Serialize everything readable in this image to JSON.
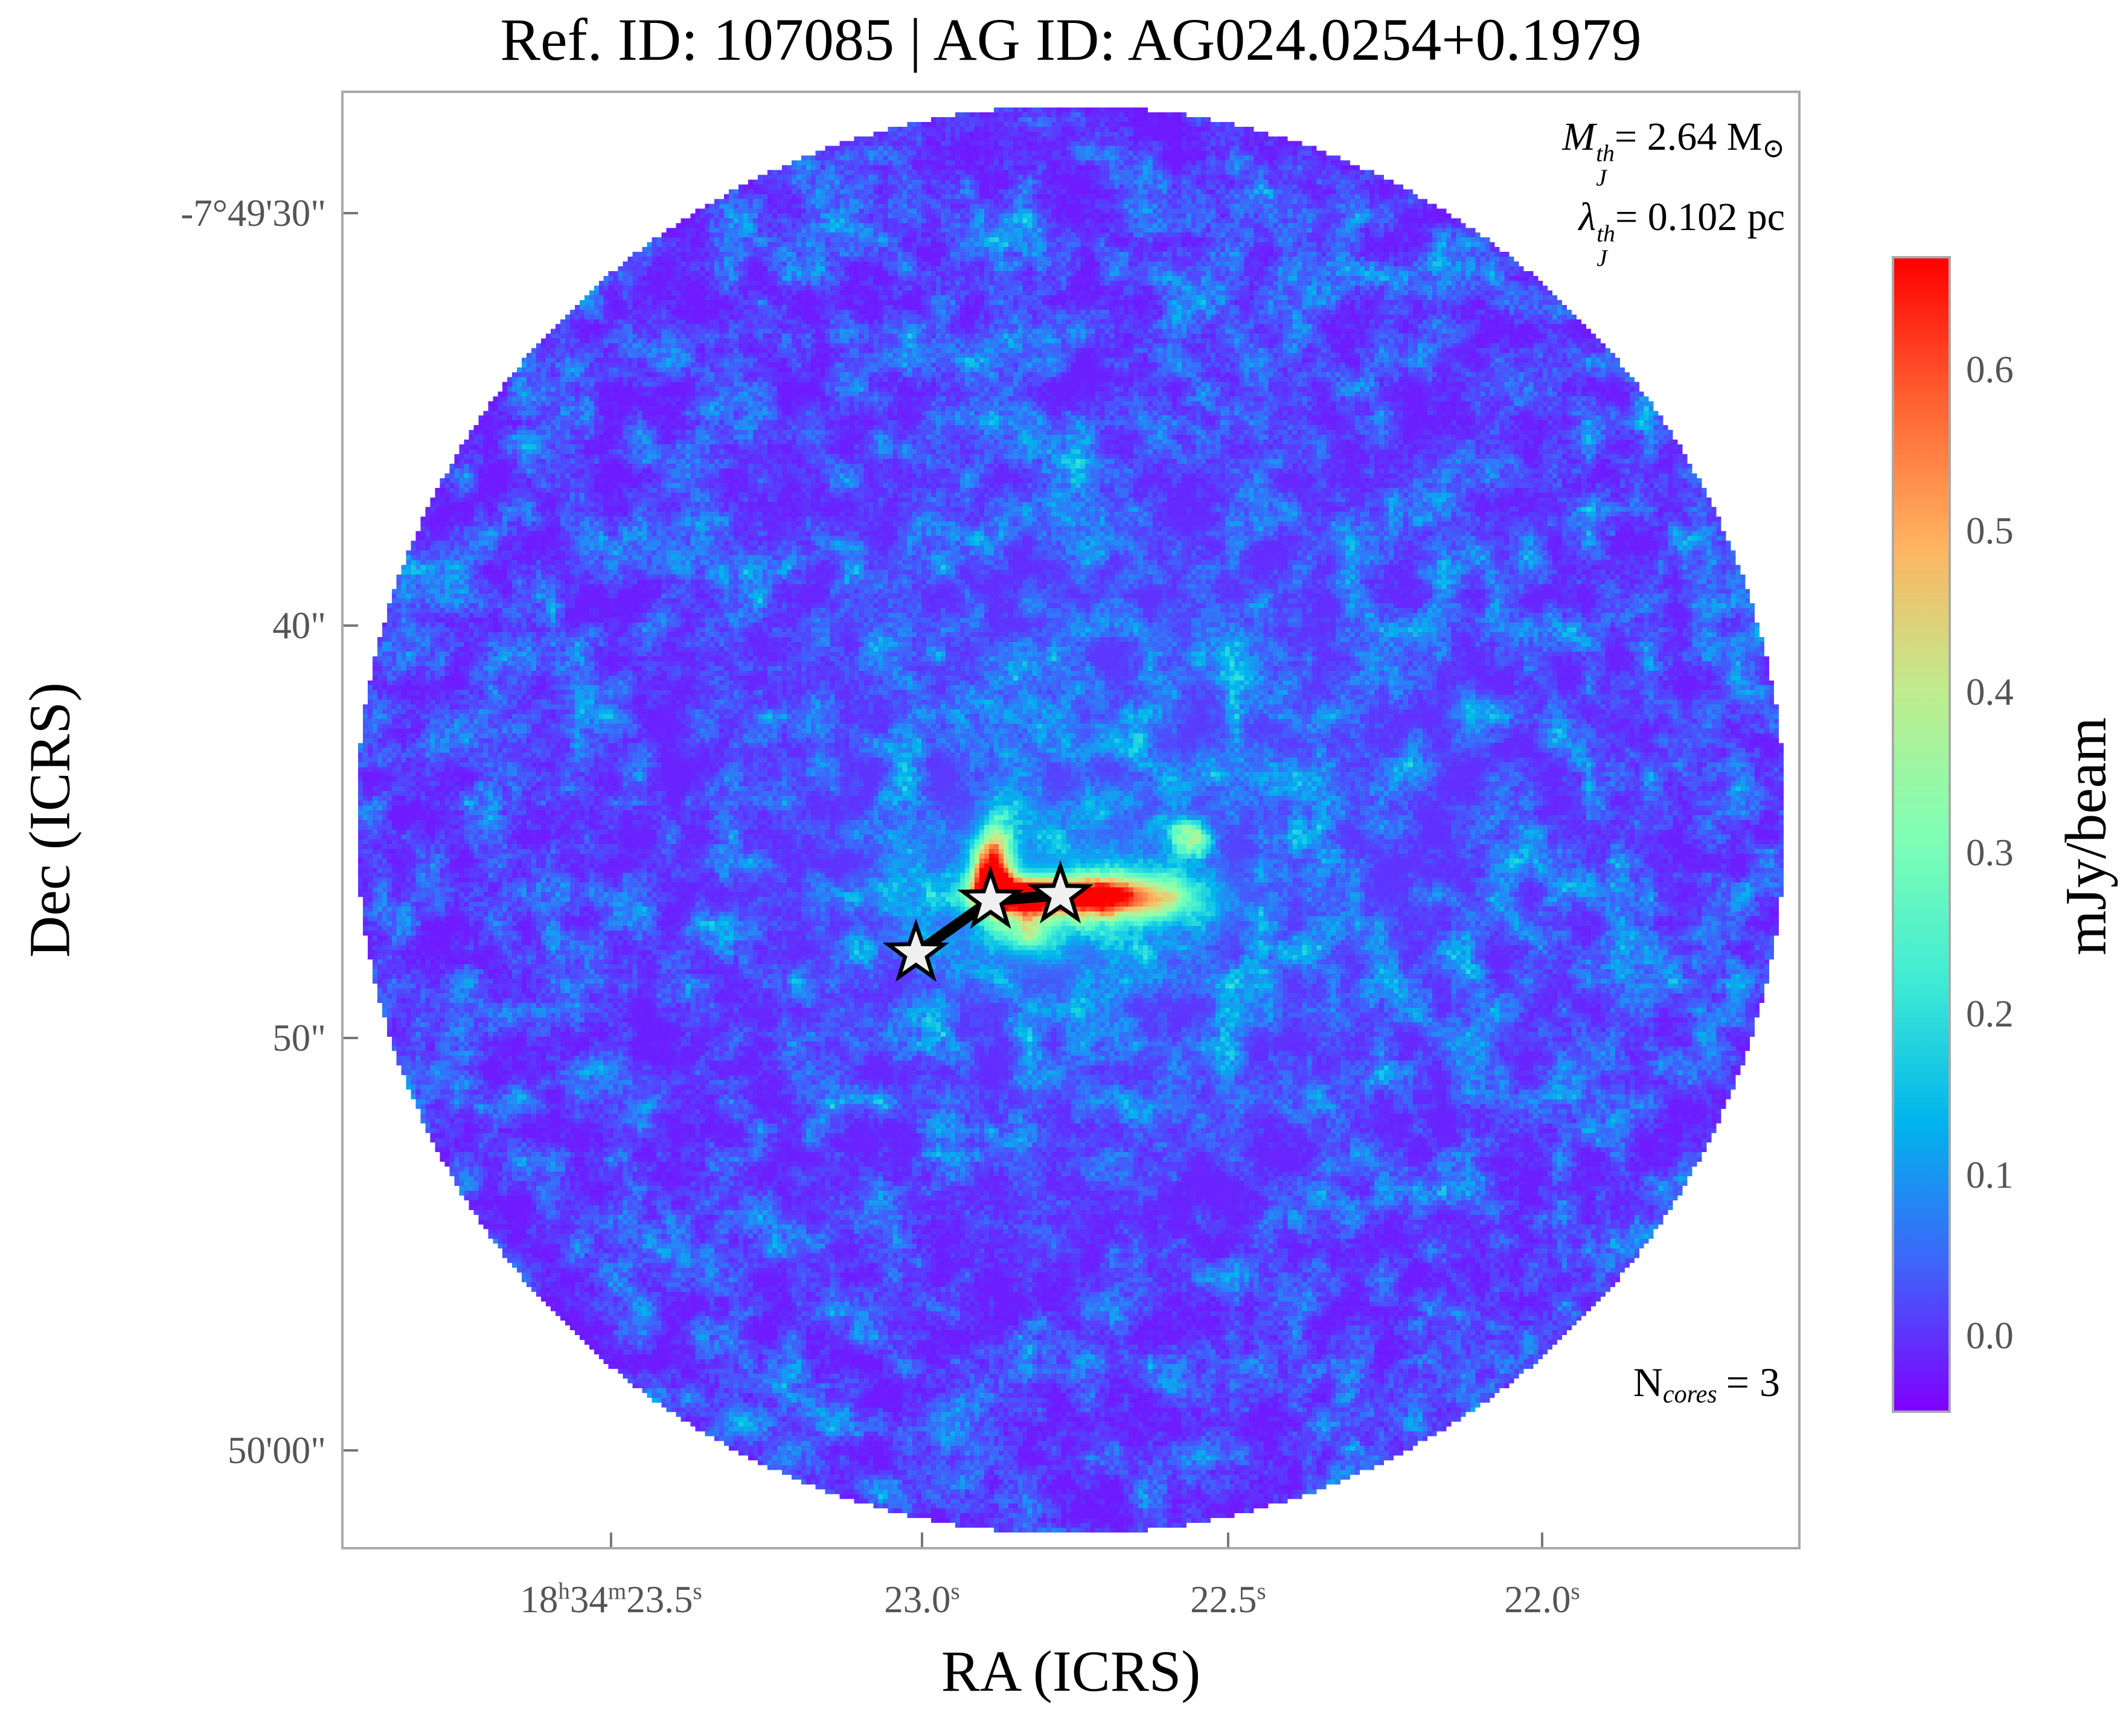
{
  "title": "Ref. ID: 107085 | AG ID: AG024.0254+0.1979",
  "axes": {
    "x_label": "RA (ICRS)",
    "y_label": "Dec (ICRS)",
    "x_ticks": [
      "18^h34^m23.5^s",
      "23.0^s",
      "22.5^s",
      "22.0^s"
    ],
    "y_ticks": [
      "-7°49'30\"",
      "40\"",
      "50\"",
      "50'00\""
    ]
  },
  "colorbar": {
    "label": "mJy/beam",
    "ticks": [
      "0.6",
      "0.5",
      "0.4",
      "0.3",
      "0.2",
      "0.1",
      "0.0"
    ],
    "colormap": "rainbow"
  },
  "annotations": {
    "mass_symbol": "M",
    "mass_sup": "th",
    "mass_sub": "J",
    "mass_value": "= 2.64 M",
    "mass_unit_sub": "⊙",
    "jeans_symbol": "λ",
    "jeans_sup": "th",
    "jeans_sub": "J",
    "jeans_value": "= 0.102 pc",
    "ncores_symbol": "N",
    "ncores_sub": "cores",
    "ncores_value": "= 3"
  },
  "colors": {
    "spine": "#a9a9a9",
    "tick_text": "#555555",
    "text": "#000000",
    "star_fill": "#f0f0f0",
    "star_stroke": "#000000",
    "mst_stroke": "#000000"
  },
  "chart_data": {
    "type": "heatmap",
    "title": "Ref. ID: 107085 | AG ID: AG024.0254+0.1979",
    "xlabel": "RA (ICRS)",
    "ylabel": "Dec (ICRS)",
    "x_tick_labels": [
      "18h34m23.5s",
      "23.0s",
      "22.5s",
      "22.0s"
    ],
    "y_tick_labels": [
      "-7°49'30\"",
      "40\"",
      "50\"",
      "50'00\""
    ],
    "colorbar": {
      "label": "mJy/beam",
      "tick_values": [
        0.0,
        0.1,
        0.2,
        0.3,
        0.4,
        0.5,
        0.6
      ],
      "range_mJy_per_beam": [
        -0.05,
        0.67
      ],
      "colormap": "rainbow"
    },
    "image": {
      "shape": "circular field of view on white background",
      "background": "low-level interferometric noise ~ -0.05 to 0.25 mJy/beam (violet-blue with cyan/green speckles)",
      "peak_feature": "elongated E-W filament near field centre reaching ~0.67 mJy/beam"
    },
    "n_cores": 3,
    "jeans_mass_Msun": 2.64,
    "jeans_length_pc": 0.102,
    "cores": [
      {
        "rel_xy": [
          0.3935,
          0.5918
        ],
        "ra": "18h34m23.01s",
        "dec": "-7°49'47.9\""
      },
      {
        "rel_xy": [
          0.4448,
          0.5554
        ],
        "ra": "18h34m22.89s",
        "dec": "-7°49'46.6\""
      },
      {
        "rel_xy": [
          0.4928,
          0.5517
        ],
        "ra": "18h34m22.78s",
        "dec": "-7°49'46.5\""
      }
    ],
    "mst_edges": [
      [
        0,
        1
      ],
      [
        1,
        2
      ]
    ],
    "bright_blobs": [
      {
        "x": 0.473,
        "y": 0.5525,
        "sx": 0.026,
        "sy": 0.0075,
        "amp": 1.05
      },
      {
        "x": 0.4448,
        "y": 0.543,
        "sx": 0.009,
        "sy": 0.012,
        "amp": 0.8
      },
      {
        "x": 0.447,
        "y": 0.5235,
        "sx": 0.009,
        "sy": 0.016,
        "amp": 0.45
      },
      {
        "x": 0.5275,
        "y": 0.5533,
        "sx": 0.032,
        "sy": 0.01,
        "amp": 0.5
      },
      {
        "x": 0.554,
        "y": 0.5533,
        "sx": 0.03,
        "sy": 0.013,
        "amp": 0.28
      },
      {
        "x": 0.47,
        "y": 0.577,
        "sx": 0.015,
        "sy": 0.01,
        "amp": 0.3
      },
      {
        "x": 0.582,
        "y": 0.513,
        "sx": 0.008,
        "sy": 0.008,
        "amp": 0.35
      },
      {
        "x": 0.48,
        "y": 0.555,
        "sx": 0.055,
        "sy": 0.035,
        "amp": 0.16
      },
      {
        "x": 0.55,
        "y": 0.5,
        "sx": 0.2,
        "sy": 0.16,
        "amp": 0.05
      }
    ]
  },
  "render": {
    "seed": 77,
    "grid": 302,
    "circle_radius": 0.493,
    "octave1": 50,
    "octave2": 120,
    "weights": [
      0.5,
      0.3,
      0.2
    ],
    "base": 0.031,
    "gain": 0.64,
    "knee": 0.3,
    "power": 1.6,
    "star": {
      "outer": 48,
      "inner": 19,
      "stroke_width": 6.5
    },
    "mst_width": 18
  }
}
